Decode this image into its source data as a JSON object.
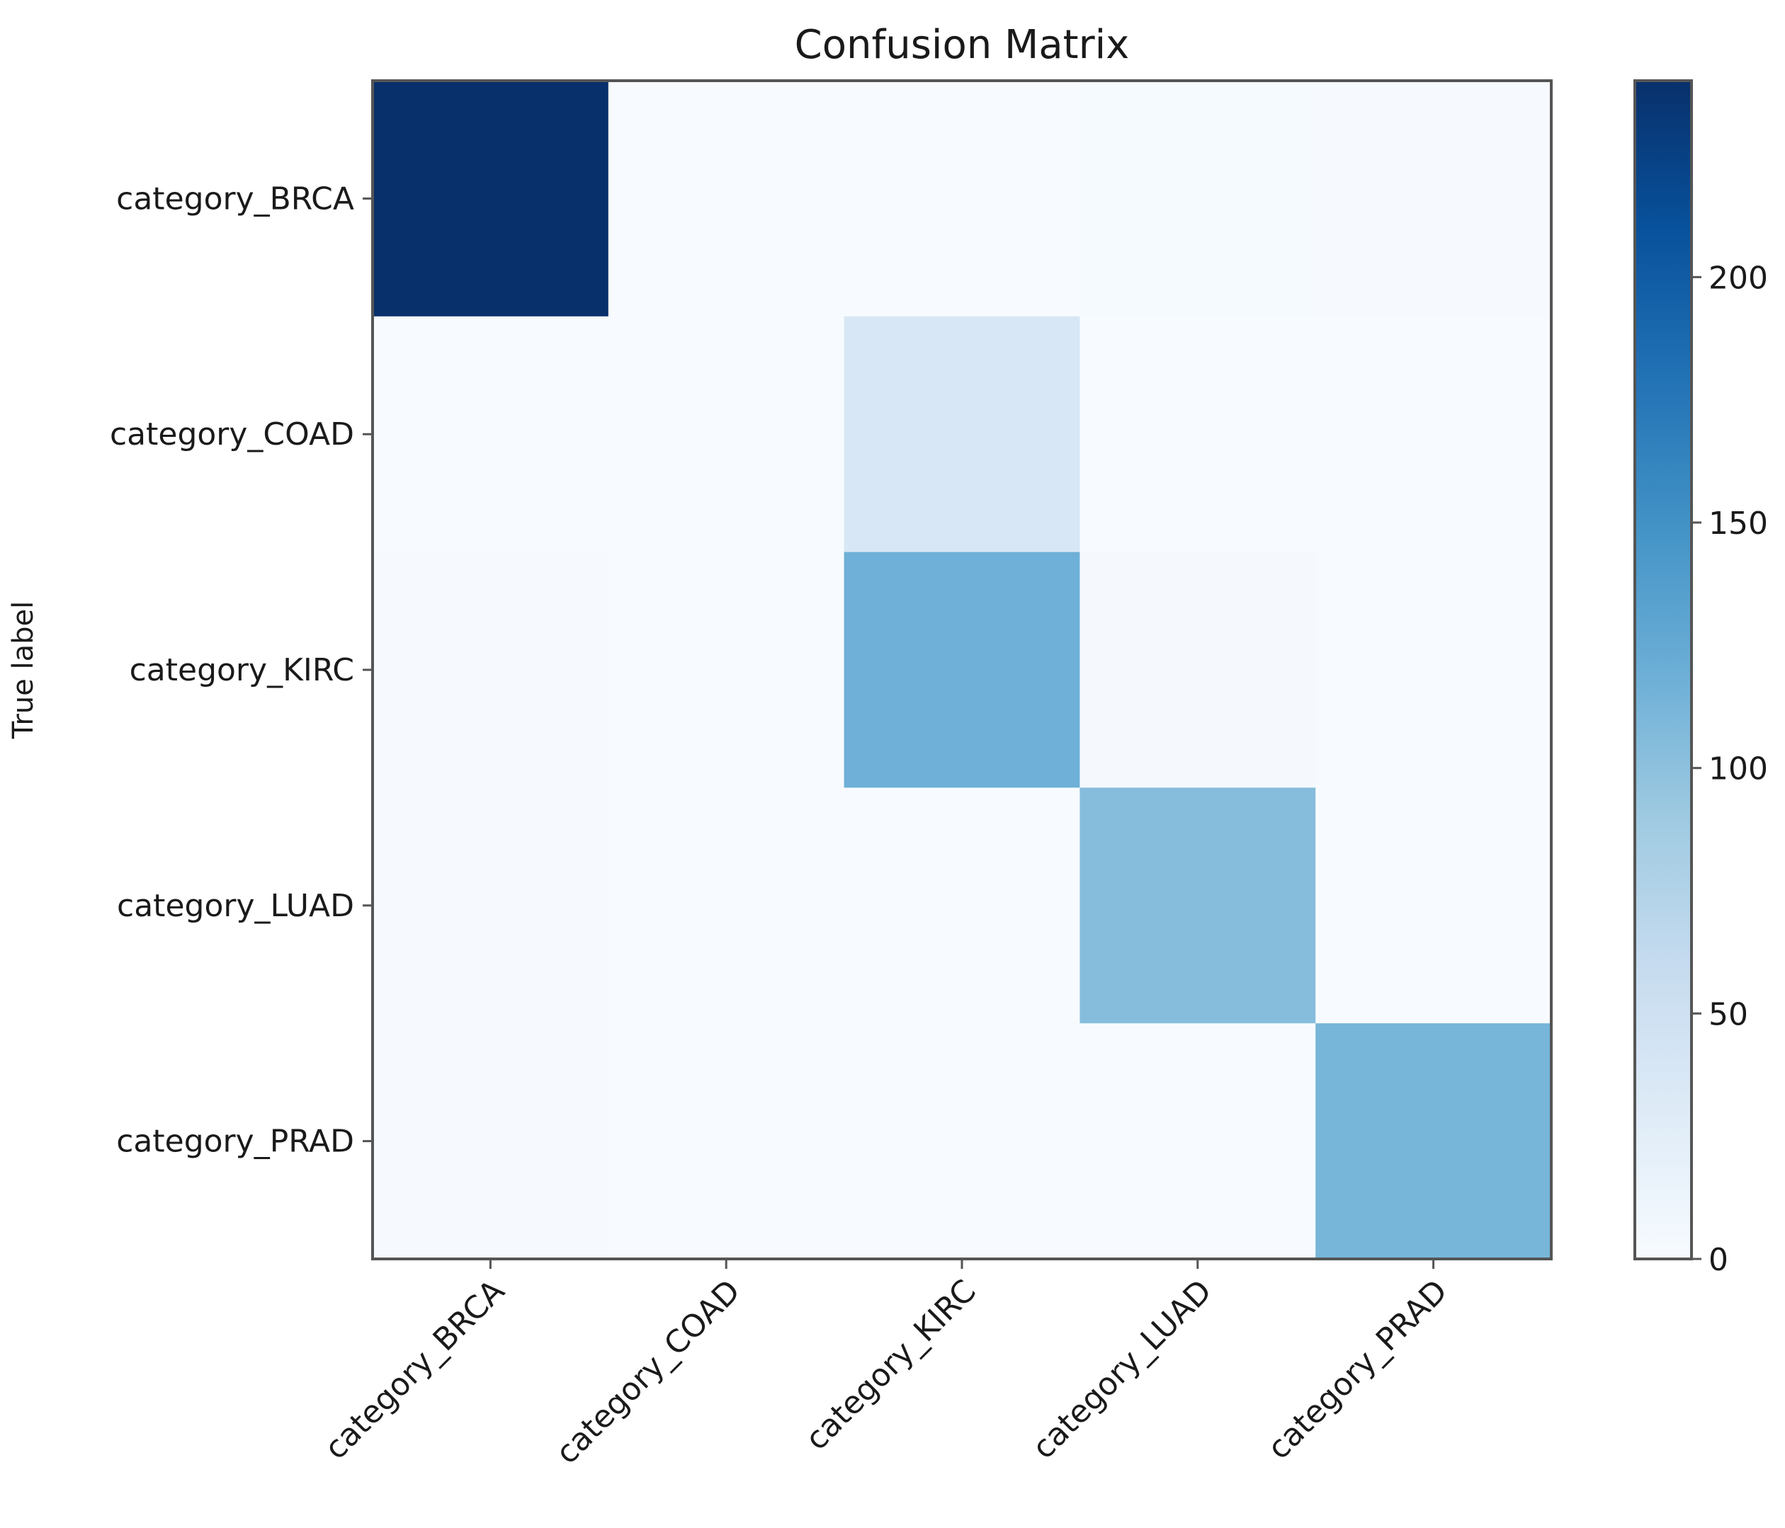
{
  "chart_data": {
    "type": "heatmap",
    "title": "Confusion Matrix",
    "ylabel": "True label",
    "xlabel": "",
    "x_categories": [
      "category_BRCA",
      "category_COAD",
      "category_KIRC",
      "category_LUAD",
      "category_PRAD"
    ],
    "y_categories": [
      "category_BRCA",
      "category_COAD",
      "category_KIRC",
      "category_LUAD",
      "category_PRAD"
    ],
    "matrix": [
      [
        240,
        0,
        0,
        2,
        1
      ],
      [
        0,
        0,
        38,
        0,
        0
      ],
      [
        1,
        0,
        118,
        3,
        0
      ],
      [
        1,
        0,
        0,
        104,
        0
      ],
      [
        1,
        0,
        0,
        0,
        113
      ]
    ],
    "colormap": "Blues",
    "colors": {
      "low": "#f7fbff",
      "mid1": "#deebf7",
      "mid2": "#c6dbef",
      "mid3": "#9ecae1",
      "mid4": "#6baed6",
      "mid5": "#4292c6",
      "mid6": "#2171b5",
      "mid7": "#08519c",
      "high": "#08306b"
    },
    "colorbar": {
      "range": [
        0,
        240
      ],
      "ticks": [
        0,
        50,
        100,
        150,
        200
      ],
      "tick_labels": [
        "0",
        "50",
        "100",
        "150",
        "200"
      ]
    },
    "grid": false
  }
}
